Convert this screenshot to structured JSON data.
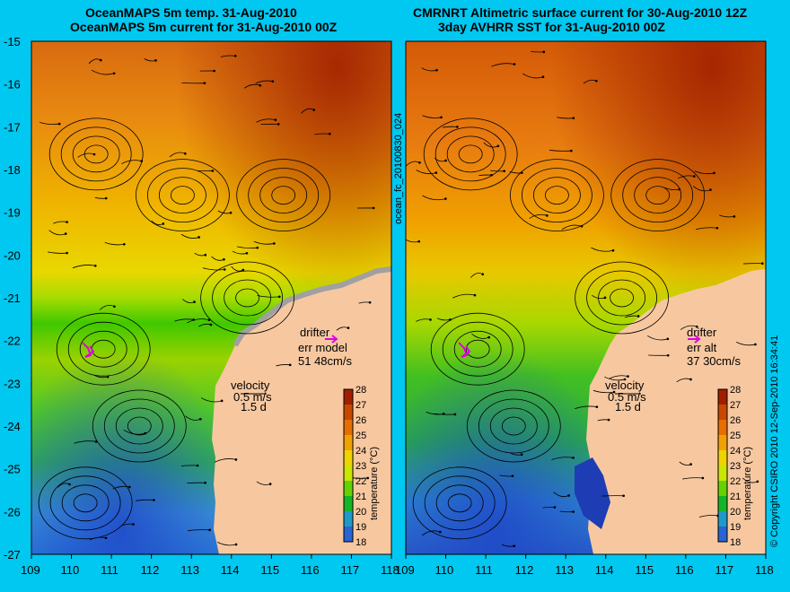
{
  "left_panel": {
    "title_line1": "OceanMAPS 5m temp. 31-Aug-2010",
    "title_line2": "OceanMAPS 5m current for 31-Aug-2010 00Z",
    "drifter_label": "drifter",
    "err_label": "err model",
    "err_value": "51 48cm/s",
    "velocity_label": "velocity",
    "velocity_scale": "0.5 m/s",
    "velocity_days": "1.5 d"
  },
  "right_panel": {
    "title_line1": "CMRNRT Altimetric surface current for 30-Aug-2010 12Z",
    "title_line2": "3day AVHRR SST for 31-Aug-2010 00Z",
    "drifter_label": "drifter",
    "err_label": "err alt",
    "err_value": "37 30cm/s",
    "velocity_label": "velocity",
    "velocity_scale": "0.5 m/s",
    "velocity_days": "1.5 d"
  },
  "axes": {
    "lat_ticks": [
      "-15",
      "-16",
      "-17",
      "-18",
      "-19",
      "-20",
      "-21",
      "-22",
      "-23",
      "-24",
      "-25",
      "-26",
      "-27"
    ],
    "lon_ticks": [
      "109",
      "110",
      "111",
      "112",
      "113",
      "114",
      "115",
      "116",
      "117",
      "118"
    ]
  },
  "colorbar": {
    "label": "temperature (°C)",
    "ticks": [
      "28",
      "27",
      "26",
      "25",
      "24",
      "23",
      "22",
      "21",
      "20",
      "19",
      "18"
    ],
    "colors": [
      "#a01e00",
      "#c84600",
      "#e66e00",
      "#f0a000",
      "#f0d200",
      "#c8e600",
      "#64d200",
      "#14b428",
      "#1e9ac8",
      "#2864d2",
      "#1e28a0"
    ]
  },
  "side_label_left": "ocean_fc_20100830_024",
  "side_label_right": "© Copyright CSIRO 2010  12-Sep-2010 16:34:41",
  "colors": {
    "background": "#00c8f0",
    "land": "#f7c8a0",
    "drifter": "#e000e0"
  }
}
